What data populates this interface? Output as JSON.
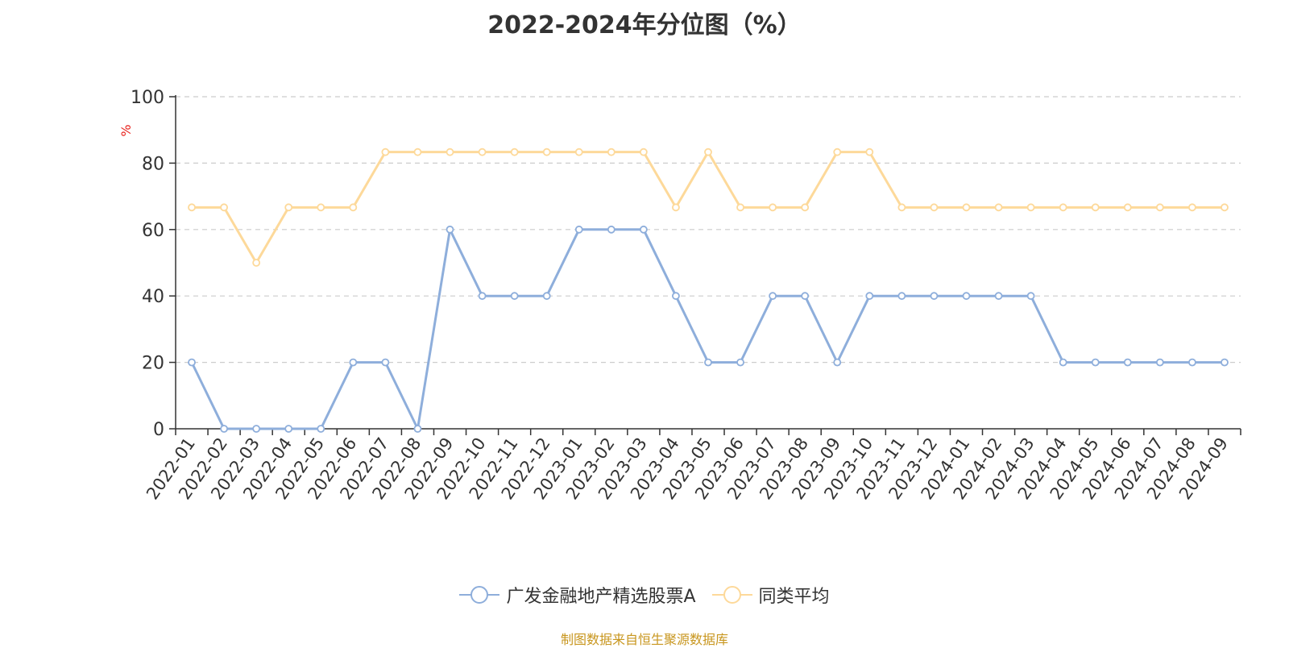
{
  "chart_data": {
    "type": "line",
    "title": "2022-2024年分位图（%）",
    "ylabel": "%",
    "ylim": [
      0,
      100
    ],
    "yticks": [
      0,
      20,
      40,
      60,
      80,
      100
    ],
    "grid": true,
    "legend_position": "bottom-center",
    "categories": [
      "2022-01",
      "2022-02",
      "2022-03",
      "2022-04",
      "2022-05",
      "2022-06",
      "2022-07",
      "2022-08",
      "2022-09",
      "2022-10",
      "2022-11",
      "2022-12",
      "2023-01",
      "2023-02",
      "2023-03",
      "2023-04",
      "2023-05",
      "2023-06",
      "2023-07",
      "2023-08",
      "2023-09",
      "2023-10",
      "2023-11",
      "2023-12",
      "2024-01",
      "2024-02",
      "2024-03",
      "2024-04",
      "2024-05",
      "2024-06",
      "2024-07",
      "2024-08",
      "2024-09"
    ],
    "series": [
      {
        "name": "广发金融地产精选股票A",
        "color": "#8eaedb",
        "values": [
          20,
          0,
          0,
          0,
          0,
          20,
          20,
          0,
          60,
          40,
          40,
          40,
          60,
          60,
          60,
          40,
          20,
          20,
          40,
          40,
          20,
          40,
          40,
          40,
          40,
          40,
          40,
          20,
          20,
          20,
          20,
          20,
          20
        ]
      },
      {
        "name": "同类平均",
        "color": "#fdd99a",
        "values": [
          66.67,
          66.67,
          50,
          66.67,
          66.67,
          66.67,
          83.33,
          83.33,
          83.33,
          83.33,
          83.33,
          83.33,
          83.33,
          83.33,
          83.33,
          66.67,
          83.33,
          66.67,
          66.67,
          66.67,
          83.33,
          83.33,
          66.67,
          66.67,
          66.67,
          66.67,
          66.67,
          66.67,
          66.67,
          66.67,
          66.67,
          66.67,
          66.67
        ]
      }
    ]
  },
  "footer": {
    "source": "制图数据来自恒生聚源数据库"
  }
}
